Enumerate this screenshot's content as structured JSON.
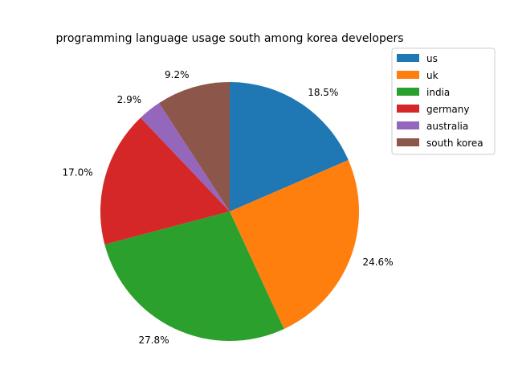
{
  "chart_data": {
    "type": "pie",
    "title": "programming language usage south among korea developers",
    "labels": [
      "us",
      "uk",
      "india",
      "germany",
      "australia",
      "south korea"
    ],
    "values": [
      18.5,
      24.6,
      27.8,
      17.0,
      2.9,
      9.2
    ],
    "value_labels": [
      "18.5%",
      "24.6%",
      "27.8%",
      "17.0%",
      "2.9%",
      "9.2%"
    ],
    "colors": [
      "#1f77b4",
      "#ff7f0e",
      "#2ca02c",
      "#d62728",
      "#9467bd",
      "#8c564b"
    ],
    "start_angle_deg": 90,
    "direction": "clockwise",
    "legend_position": "top-right"
  }
}
